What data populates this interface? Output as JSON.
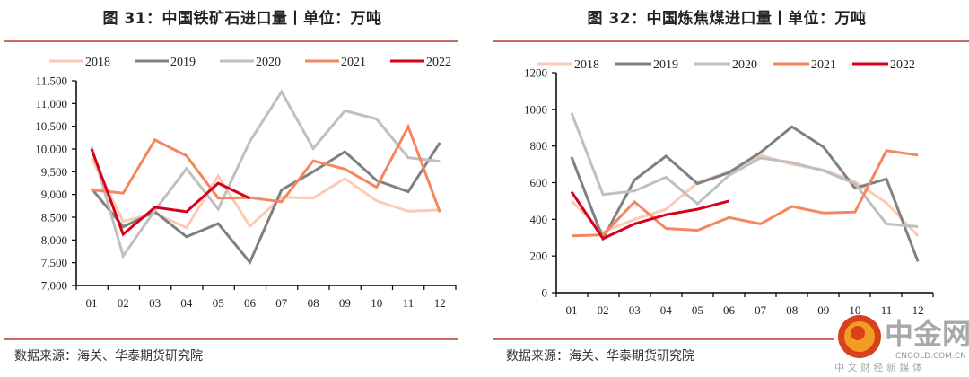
{
  "chart_data": [
    {
      "type": "line",
      "title": "图 31：中国铁矿石进口量丨单位：万吨",
      "xlabel": "",
      "ylabel": "",
      "categories": [
        "01",
        "02",
        "03",
        "04",
        "05",
        "06",
        "07",
        "08",
        "09",
        "10",
        "11",
        "12"
      ],
      "yticks": [
        "7,000",
        "7,500",
        "8,000",
        "8,500",
        "9,000",
        "9,500",
        "10,000",
        "10,500",
        "11,000",
        "11,500"
      ],
      "ylim": [
        7000,
        11500
      ],
      "legend_position": "top",
      "grid": false,
      "series": [
        {
          "name": "2018",
          "color": "#fbcbb5",
          "values": [
            9800,
            8410,
            8590,
            8270,
            9410,
            8300,
            8940,
            8920,
            9350,
            8860,
            8630,
            8660
          ]
        },
        {
          "name": "2019",
          "color": "#808080",
          "values": [
            9130,
            8290,
            8620,
            8070,
            8360,
            7510,
            9100,
            9500,
            9940,
            9310,
            9060,
            10140
          ]
        },
        {
          "name": "2020",
          "color": "#bfbfbf",
          "values": [
            10050,
            7650,
            8650,
            9570,
            8680,
            10170,
            11260,
            10010,
            10840,
            10660,
            9810,
            9730
          ]
        },
        {
          "name": "2021",
          "color": "#f4875f",
          "values": [
            9100,
            9030,
            10200,
            9850,
            8920,
            8930,
            8840,
            9740,
            9560,
            9160,
            10490,
            8610
          ]
        },
        {
          "name": "2022",
          "color": "#d7001b",
          "values": [
            10000,
            8125,
            8720,
            8620,
            9250,
            8915
          ]
        }
      ],
      "source": "数据来源：海关、华泰期货研究院"
    },
    {
      "type": "line",
      "title": "图 32：中国炼焦煤进口量丨单位：万吨",
      "xlabel": "",
      "ylabel": "",
      "categories": [
        "01",
        "02",
        "03",
        "04",
        "05",
        "06",
        "07",
        "08",
        "09",
        "10",
        "11",
        "12"
      ],
      "yticks": [
        "0",
        "200",
        "400",
        "600",
        "800",
        "1000",
        "1200"
      ],
      "ylim": [
        0,
        1200
      ],
      "legend_position": "top",
      "grid": false,
      "series": [
        {
          "name": "2018",
          "color": "#fbcbb5",
          "values": [
            500,
            330,
            400,
            455,
            600,
            660,
            750,
            700,
            670,
            605,
            490,
            310
          ]
        },
        {
          "name": "2019",
          "color": "#808080",
          "values": [
            740,
            295,
            615,
            745,
            595,
            655,
            765,
            905,
            795,
            570,
            620,
            170
          ]
        },
        {
          "name": "2020",
          "color": "#bfbfbf",
          "values": [
            980,
            535,
            555,
            630,
            485,
            640,
            735,
            710,
            665,
            595,
            375,
            360
          ]
        },
        {
          "name": "2021",
          "color": "#f4875f",
          "values": [
            310,
            315,
            495,
            350,
            340,
            410,
            375,
            470,
            435,
            440,
            775,
            750
          ]
        },
        {
          "name": "2022",
          "color": "#d7001b",
          "values": [
            550,
            295,
            375,
            425,
            455,
            500
          ]
        }
      ],
      "source": "数据来源：海关、华泰期货研究院"
    }
  ],
  "watermark": {
    "brand": "中金网",
    "domain": "CNGOLD.COM.CN",
    "tagline": "中 文 财 经 新 媒 体"
  }
}
